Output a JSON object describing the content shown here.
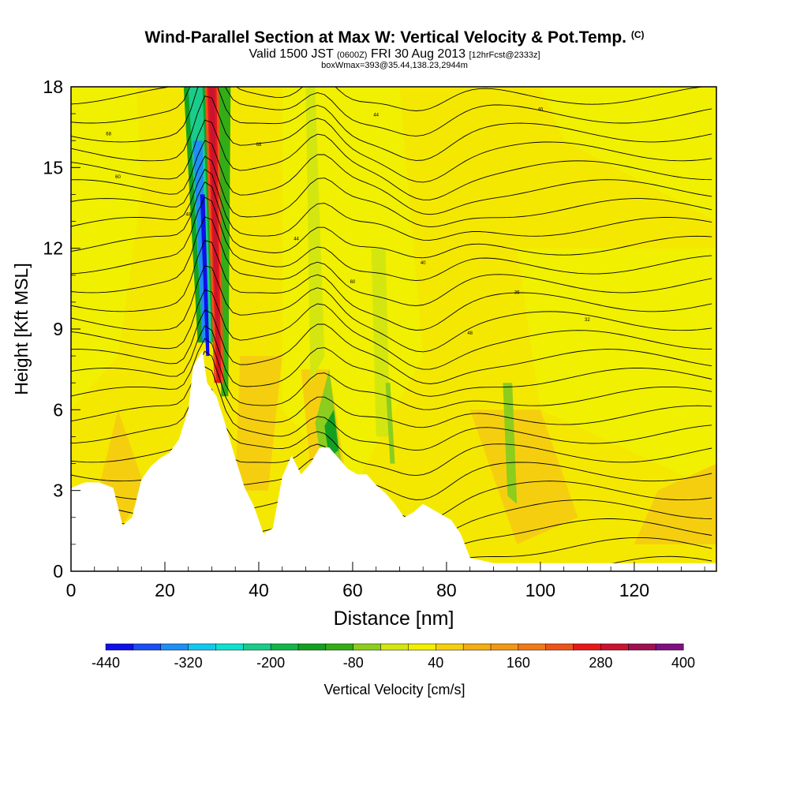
{
  "title": {
    "main": "Wind-Parallel Section at Max W: Vertical Velocity & Pot.Temp.",
    "main_suffix": "(C)",
    "valid_a": "Valid 1500 JST",
    "valid_b": "(0600Z)",
    "valid_c": "FRI 30 Aug 2013",
    "valid_d": "[12hrFcst@2333z]",
    "box": "boxWmax=393@35.44,138.23,2944m"
  },
  "chart_data": {
    "type": "heatmap",
    "xlabel": "Distance [nm]",
    "ylabel": "Height [Kft MSL]",
    "xlim": [
      0,
      137.5
    ],
    "ylim": [
      0,
      18
    ],
    "xticks": [
      0,
      20,
      40,
      60,
      80,
      100,
      120
    ],
    "yticks": [
      0,
      3,
      6,
      9,
      12,
      15,
      18
    ],
    "colorbar": {
      "label": "Vertical Velocity [cm/s]",
      "tick_labels": [
        "-440",
        "-320",
        "-200",
        "-80",
        "40",
        "160",
        "280",
        "400"
      ],
      "levels": [
        -440,
        -400,
        -360,
        -320,
        -280,
        -240,
        -200,
        -160,
        -120,
        -80,
        -40,
        0,
        40,
        80,
        120,
        160,
        200,
        240,
        280,
        320,
        360,
        400
      ],
      "colors": [
        "#1010e8",
        "#1a4ef0",
        "#1f8ef5",
        "#13c8ef",
        "#10e0d0",
        "#1acc8a",
        "#14b54a",
        "#13a021",
        "#33ad16",
        "#8ccd1e",
        "#d4e610",
        "#f0f000",
        "#f5cf0f",
        "#f3ae12",
        "#f29817",
        "#ef7a17",
        "#ec541a",
        "#e81818",
        "#c81430",
        "#a01050",
        "#7e1080"
      ]
    },
    "terrain_profile_kft": {
      "x": [
        0,
        3,
        6,
        9,
        11,
        13,
        15,
        17,
        19,
        21,
        23,
        25,
        26,
        28,
        29,
        31,
        33,
        35,
        37,
        39,
        41,
        43,
        45,
        47,
        49,
        51,
        53,
        55,
        57,
        59,
        61,
        63,
        65,
        67,
        69,
        71,
        73,
        75,
        77,
        79,
        81,
        83,
        85,
        90,
        95,
        100,
        110,
        120,
        130,
        137.5
      ],
      "y": [
        3.1,
        3.3,
        3.3,
        3.1,
        1.7,
        2.0,
        3.4,
        3.9,
        4.2,
        4.4,
        4.9,
        6.0,
        7.6,
        8.2,
        7.0,
        6.5,
        5.4,
        4.2,
        3.1,
        2.4,
        1.4,
        1.6,
        3.5,
        4.3,
        3.6,
        4.0,
        4.6,
        4.6,
        4.2,
        3.8,
        3.6,
        3.6,
        3.2,
        2.9,
        2.5,
        2.0,
        2.2,
        2.5,
        2.3,
        2.1,
        1.9,
        1.4,
        0.5,
        0.3,
        0.3,
        0.3,
        0.3,
        0.3,
        0.3,
        0.3
      ]
    },
    "theta_contour_labels": [
      "68",
      "60",
      "48",
      "44",
      "40",
      "36",
      "32"
    ]
  }
}
